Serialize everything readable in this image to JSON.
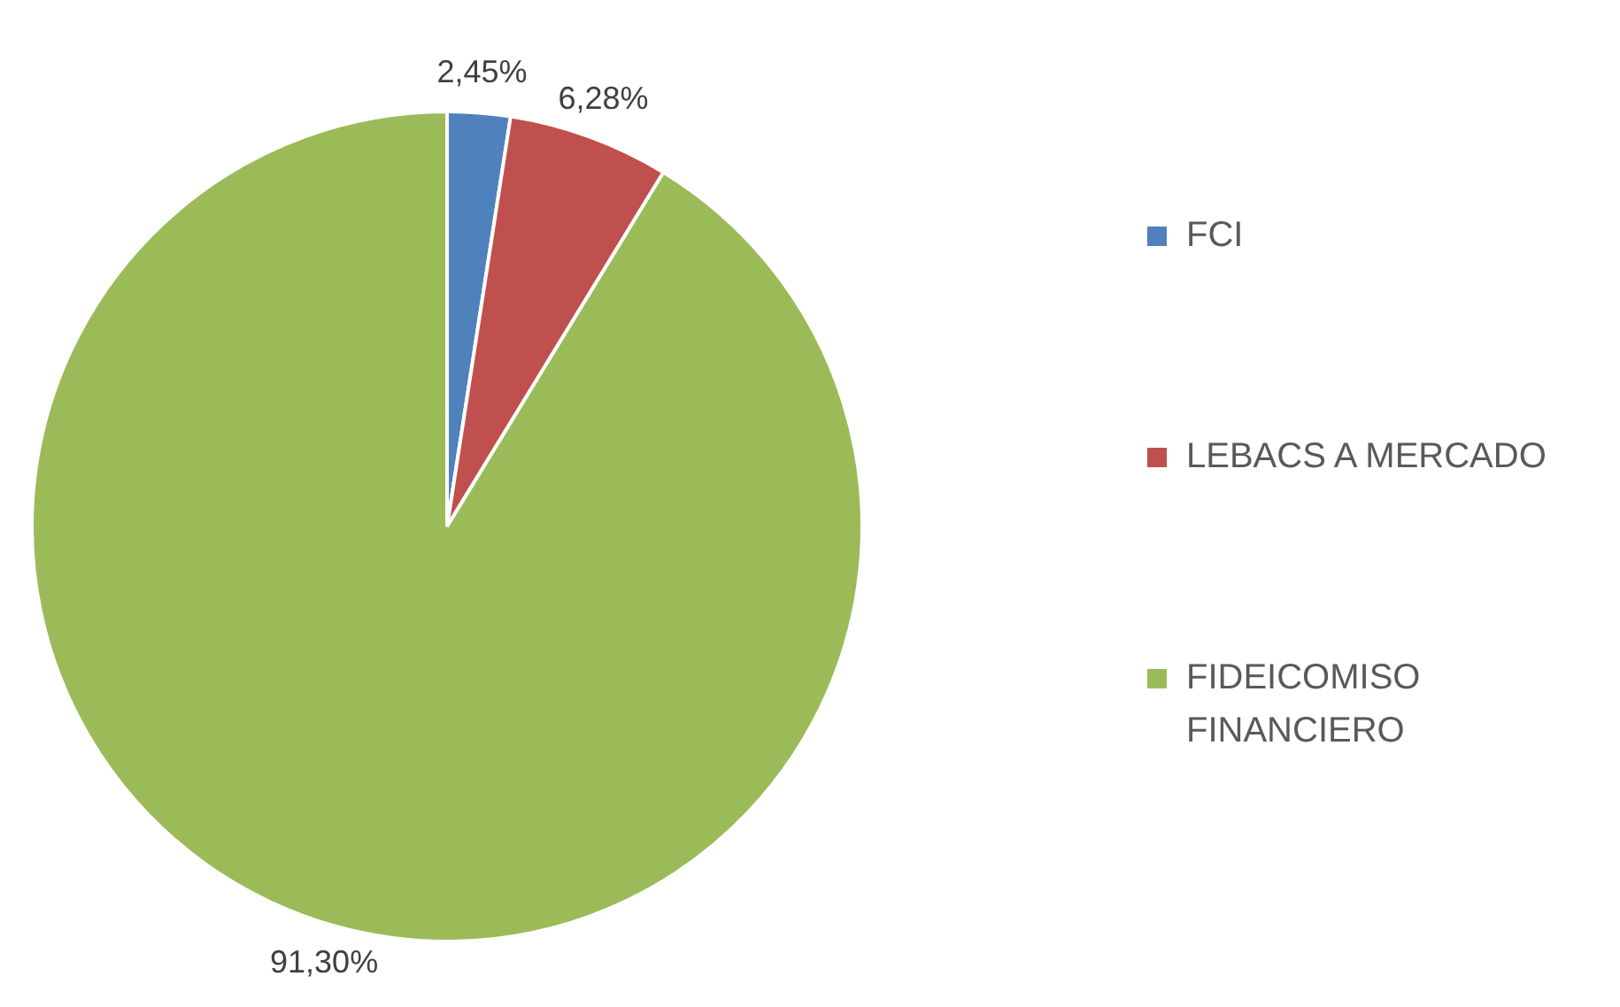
{
  "chart_data": {
    "type": "pie",
    "categories": [
      "FCI",
      "LEBACS A MERCADO",
      "FIDEICOMISO FINANCIERO"
    ],
    "values": [
      2.45,
      6.28,
      91.3
    ],
    "colors": [
      "#4f81bd",
      "#c0504d",
      "#9bbb59"
    ],
    "value_labels": [
      "2,45%",
      "6,28%",
      "91,30%"
    ],
    "legend": "right"
  }
}
